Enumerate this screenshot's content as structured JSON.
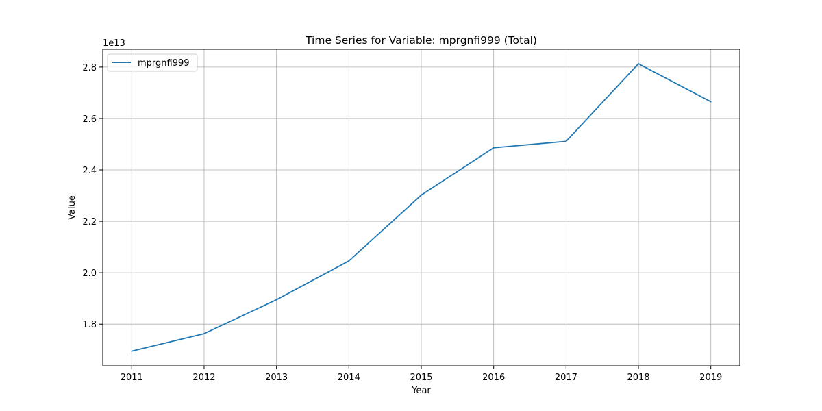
{
  "chart_data": {
    "type": "line",
    "title": "Time Series for Variable: mprgnfi999 (Total)",
    "xlabel": "Year",
    "ylabel": "Value",
    "y_offset_label": "1e13",
    "y_scale": 10000000000000,
    "x": [
      2011,
      2012,
      2013,
      2014,
      2015,
      2016,
      2017,
      2018,
      2019
    ],
    "series": [
      {
        "name": "mprgnfi999",
        "color": "#1f77b4",
        "values": [
          16950000000000.0,
          17630000000000.0,
          18950000000000.0,
          20460000000000.0,
          23020000000000.0,
          24860000000000.0,
          25110000000000.0,
          28130000000000.0,
          26650000000000.0
        ]
      }
    ],
    "xlim": [
      2010.6,
      2019.4
    ],
    "ylim": [
      16380000000000.0,
      28690000000000.0
    ],
    "y_ticks": [
      1.8,
      2.0,
      2.2,
      2.4,
      2.6,
      2.8
    ],
    "y_tick_labels": [
      "1.8",
      "2.0",
      "2.2",
      "2.4",
      "2.6",
      "2.8"
    ],
    "x_tick_labels": [
      "2011",
      "2012",
      "2013",
      "2014",
      "2015",
      "2016",
      "2017",
      "2018",
      "2019"
    ],
    "grid": true,
    "legend": "upper-left"
  }
}
